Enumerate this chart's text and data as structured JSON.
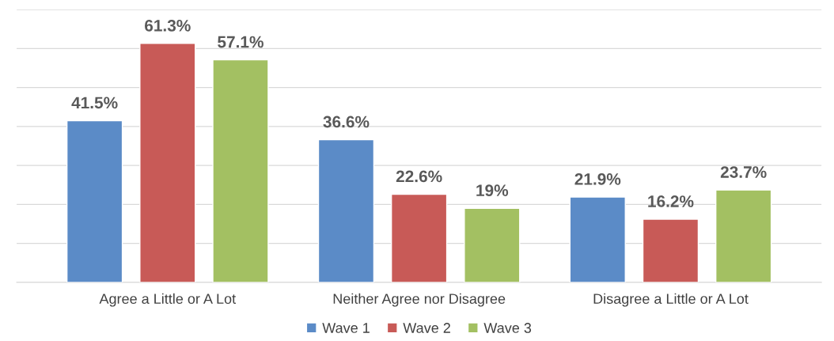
{
  "chart_data": {
    "type": "bar",
    "categories": [
      "Agree a Little or A Lot",
      "Neither Agree nor Disagree",
      "Disagree a Little or A Lot"
    ],
    "series": [
      {
        "name": "Wave 1",
        "color": "#5b8bc7",
        "values": [
          41.5,
          36.6,
          21.9
        ],
        "value_labels": [
          "41.5%",
          "36.6%",
          "21.9%"
        ]
      },
      {
        "name": "Wave 2",
        "color": "#c85a57",
        "values": [
          61.3,
          22.6,
          16.2
        ],
        "value_labels": [
          "61.3%",
          "22.6%",
          "16.2%"
        ]
      },
      {
        "name": "Wave 3",
        "color": "#a3c062",
        "values": [
          57.1,
          19,
          23.7
        ],
        "value_labels": [
          "57.1%",
          "19%",
          "23.7%"
        ]
      }
    ],
    "ylim": [
      0,
      70
    ],
    "yticks": [
      {
        "value": 0,
        "label": null
      },
      {
        "value": 10,
        "label": null
      },
      {
        "value": 20,
        "label": null
      },
      {
        "value": 30,
        "label": null
      },
      {
        "value": 40,
        "label": null
      },
      {
        "value": 50,
        "label": null
      },
      {
        "value": 60,
        "label": null
      },
      {
        "value": 70,
        "label": null
      }
    ],
    "tick_labels": "x",
    "grid": "y",
    "legend": "bottom"
  }
}
